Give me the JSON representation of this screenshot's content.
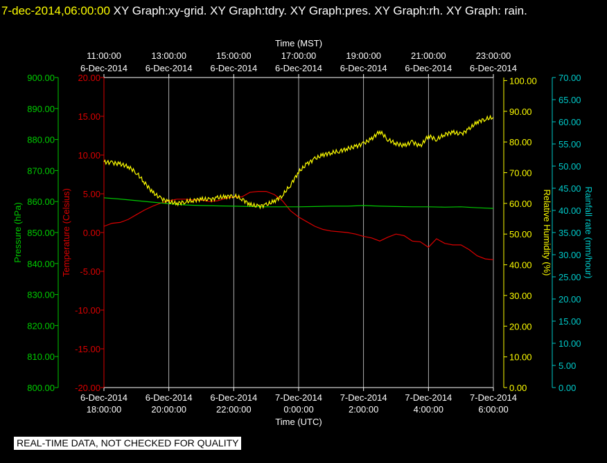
{
  "header": {
    "timestamp": "7-dec-2014,06:00:00",
    "graphs": "XY Graph:xy-grid.  XY Graph:tdry.  XY Graph:pres.  XY Graph:rh.  XY Graph: rain."
  },
  "notice": "REAL-TIME DATA, NOT CHECKED FOR QUALITY",
  "colors": {
    "pressure": "#00cc00",
    "temperature": "#dd0000",
    "humidity": "#ffff00",
    "rain": "#00cccc",
    "grid": "#ffffff"
  },
  "chart_data": {
    "type": "line",
    "top_axis": {
      "label": "Time (MST)",
      "ticks": [
        {
          "time": "11:00:00",
          "date": "6-Dec-2014"
        },
        {
          "time": "13:00:00",
          "date": "6-Dec-2014"
        },
        {
          "time": "15:00:00",
          "date": "6-Dec-2014"
        },
        {
          "time": "17:00:00",
          "date": "6-Dec-2014"
        },
        {
          "time": "19:00:00",
          "date": "6-Dec-2014"
        },
        {
          "time": "21:00:00",
          "date": "6-Dec-2014"
        },
        {
          "time": "23:00:00",
          "date": "6-Dec-2014"
        }
      ]
    },
    "bottom_axis": {
      "label": "Time (UTC)",
      "ticks": [
        {
          "date": "6-Dec-2014",
          "time": "18:00:00"
        },
        {
          "date": "6-Dec-2014",
          "time": "20:00:00"
        },
        {
          "date": "6-Dec-2014",
          "time": "22:00:00"
        },
        {
          "date": "7-Dec-2014",
          "time": "0:00:00"
        },
        {
          "date": "7-Dec-2014",
          "time": "2:00:00"
        },
        {
          "date": "7-Dec-2014",
          "time": "4:00:00"
        },
        {
          "date": "7-Dec-2014",
          "time": "6:00:00"
        }
      ],
      "x_range_hours": [
        0,
        12
      ]
    },
    "axes": {
      "pressure": {
        "label": "Pressure (hPa)",
        "range": [
          800,
          900
        ],
        "ticks": [
          "800.00",
          "810.00",
          "820.00",
          "830.00",
          "840.00",
          "850.00",
          "860.00",
          "870.00",
          "880.00",
          "890.00",
          "900.00"
        ]
      },
      "temperature": {
        "label": "Temperature (Celsius)",
        "range": [
          -20,
          20
        ],
        "ticks": [
          "-20.00",
          "-15.00",
          "-10.00",
          "-5.00",
          "0.00",
          "5.00",
          "10.00",
          "15.00",
          "20.00"
        ]
      },
      "humidity": {
        "label": "Relative Humidity (%)",
        "range": [
          0,
          101
        ],
        "ticks": [
          "0.00",
          "10.00",
          "20.00",
          "30.00",
          "40.00",
          "50.00",
          "60.00",
          "70.00",
          "80.00",
          "90.00",
          "100.00"
        ]
      },
      "rain": {
        "label": "Rainfall rate (mm/hour)",
        "range": [
          0,
          70
        ],
        "ticks": [
          "0.00",
          "5.00",
          "10.00",
          "15.00",
          "20.00",
          "25.00",
          "30.00",
          "35.00",
          "40.00",
          "45.00",
          "50.00",
          "55.00",
          "60.00",
          "65.00",
          "70.00"
        ]
      }
    },
    "series": [
      {
        "name": "tdry",
        "axis": "temperature",
        "x": [
          0,
          0.25,
          0.5,
          0.75,
          1,
          1.25,
          1.5,
          1.75,
          2,
          2.25,
          2.5,
          2.75,
          3,
          3.25,
          3.5,
          3.75,
          4,
          4.25,
          4.5,
          4.75,
          5,
          5.25,
          5.5,
          5.75,
          6,
          6.25,
          6.5,
          6.75,
          7,
          7.25,
          7.5,
          7.75,
          8,
          8.25,
          8.5,
          8.75,
          9,
          9.25,
          9.5,
          9.75,
          10,
          10.25,
          10.5,
          10.75,
          11,
          11.25,
          11.5,
          11.75,
          12
        ],
        "y": [
          0.8,
          1.2,
          1.3,
          1.7,
          2.3,
          2.9,
          3.4,
          3.8,
          4.1,
          4.3,
          4.3,
          4.2,
          4.2,
          4.0,
          4.1,
          4.4,
          4.6,
          4.6,
          5.2,
          5.3,
          5.3,
          4.9,
          4.1,
          2.8,
          2.0,
          1.4,
          0.8,
          0.4,
          0.2,
          0.1,
          0.0,
          -0.2,
          -0.5,
          -0.7,
          -1.1,
          -0.6,
          -0.2,
          -0.4,
          -1.1,
          -1.2,
          -1.9,
          -0.8,
          -1.4,
          -1.6,
          -1.6,
          -2.2,
          -3.0,
          -3.4,
          -3.5
        ]
      },
      {
        "name": "pres",
        "axis": "pressure",
        "x": [
          0,
          0.5,
          1,
          1.5,
          2,
          2.5,
          3,
          3.5,
          4,
          4.5,
          5,
          5.5,
          6,
          6.5,
          7,
          7.5,
          8,
          8.5,
          9,
          9.5,
          10,
          10.5,
          11,
          11.5,
          12
        ],
        "y": [
          861.2,
          860.8,
          860.3,
          859.8,
          859.3,
          858.9,
          858.7,
          858.6,
          858.5,
          858.4,
          858.3,
          858.3,
          858.3,
          858.4,
          858.5,
          858.5,
          858.7,
          858.5,
          858.4,
          858.3,
          858.3,
          858.2,
          858.3,
          858.0,
          857.8
        ]
      },
      {
        "name": "rh",
        "axis": "humidity",
        "x": [
          0,
          0.25,
          0.5,
          0.75,
          1,
          1.25,
          1.5,
          1.75,
          2,
          2.25,
          2.5,
          2.75,
          3,
          3.25,
          3.5,
          3.75,
          4,
          4.25,
          4.5,
          4.75,
          5,
          5.25,
          5.5,
          5.75,
          6,
          6.25,
          6.5,
          6.75,
          7,
          7.25,
          7.5,
          7.75,
          8,
          8.25,
          8.5,
          8.75,
          9,
          9.25,
          9.5,
          9.75,
          10,
          10.25,
          10.5,
          10.75,
          11,
          11.25,
          11.5,
          11.75,
          12
        ],
        "y": [
          73.5,
          73.2,
          72.8,
          72.0,
          70.0,
          66.8,
          63.6,
          61.6,
          60.5,
          60.0,
          60.5,
          61.0,
          61.4,
          61.2,
          61.8,
          62.2,
          62.5,
          61.5,
          59.6,
          59.0,
          59.5,
          60.7,
          62.6,
          66.0,
          70.2,
          72.8,
          74.5,
          75.8,
          76.5,
          77.0,
          77.8,
          78.5,
          79.5,
          81.0,
          83.5,
          80.8,
          79.5,
          78.8,
          80.0,
          78.6,
          82.0,
          80.8,
          82.5,
          83.2,
          82.5,
          84.2,
          86.5,
          87.5,
          88.0
        ]
      }
    ]
  }
}
